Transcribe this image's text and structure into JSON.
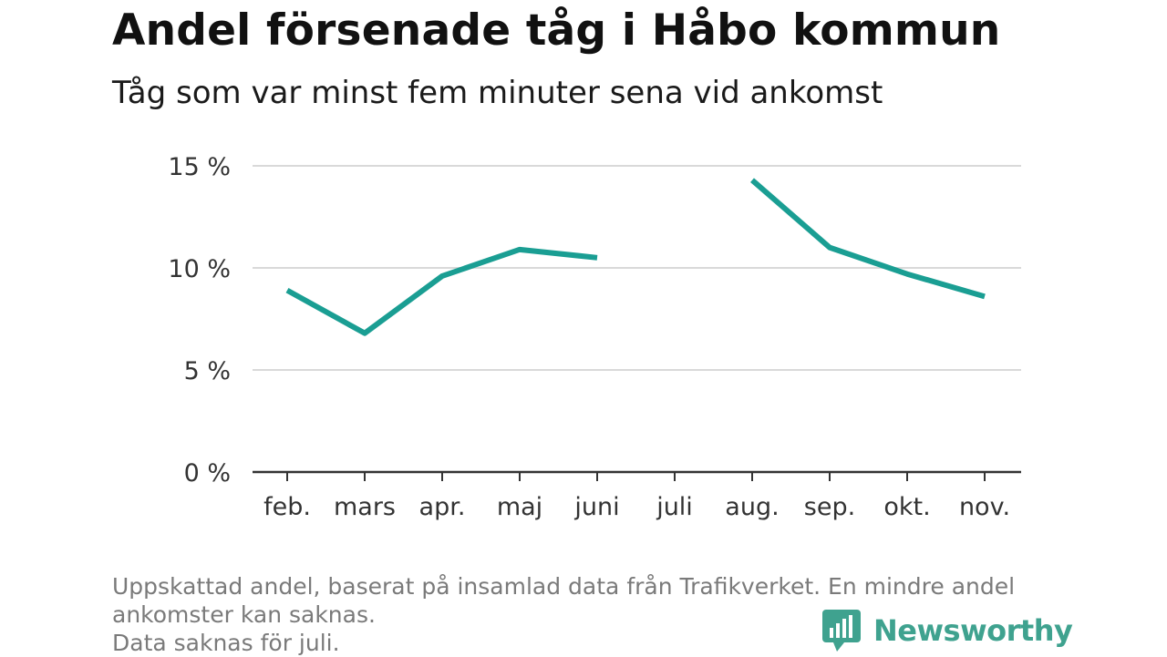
{
  "title": "Andel försenade tåg i Håbo kommun",
  "subtitle": "Tåg som var minst fem minuter sena vid ankomst",
  "footnote": {
    "line1": "Uppskattad andel, baserat på insamlad data från Trafikverket. En mindre andel",
    "line2": "ankomster kan saknas.",
    "line3": "Data saknas för juli."
  },
  "brand": {
    "name": "Newsworthy",
    "color": "#3fa28f"
  },
  "colors": {
    "line": "#1a9e93",
    "grid": "#d9d9d9",
    "axis": "#333333"
  },
  "chart_data": {
    "type": "line",
    "categories": [
      "feb.",
      "mars",
      "apr.",
      "maj",
      "juni",
      "juli",
      "aug.",
      "sep.",
      "okt.",
      "nov."
    ],
    "series": [
      {
        "values": [
          8.9,
          6.8,
          9.6,
          10.9,
          10.5,
          null,
          14.3,
          11.0,
          9.7,
          8.6
        ]
      }
    ],
    "y_ticks": [
      0,
      5,
      10,
      15
    ],
    "y_tick_labels": [
      "0 %",
      "5 %",
      "10 %",
      "15 %"
    ],
    "ylim": [
      0,
      15
    ],
    "grid": true,
    "xlabel": "",
    "ylabel": ""
  }
}
